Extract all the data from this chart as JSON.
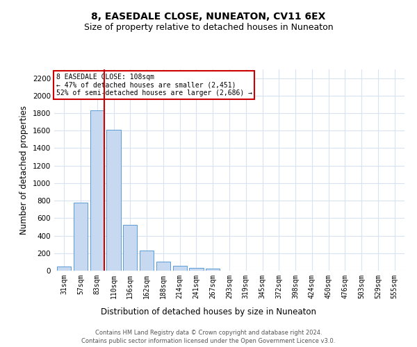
{
  "title": "8, EASEDALE CLOSE, NUNEATON, CV11 6EX",
  "subtitle": "Size of property relative to detached houses in Nuneaton",
  "xlabel": "Distribution of detached houses by size in Nuneaton",
  "ylabel": "Number of detached properties",
  "categories": [
    "31sqm",
    "57sqm",
    "83sqm",
    "110sqm",
    "136sqm",
    "162sqm",
    "188sqm",
    "214sqm",
    "241sqm",
    "267sqm",
    "293sqm",
    "319sqm",
    "345sqm",
    "372sqm",
    "398sqm",
    "424sqm",
    "450sqm",
    "476sqm",
    "503sqm",
    "529sqm",
    "555sqm"
  ],
  "values": [
    45,
    780,
    1830,
    1610,
    520,
    230,
    105,
    55,
    35,
    20,
    0,
    0,
    0,
    0,
    0,
    0,
    0,
    0,
    0,
    0,
    0
  ],
  "bar_color": "#c6d9f0",
  "bar_edge_color": "#5b9bd5",
  "vline_x_index": 2.43,
  "annotation_text": "8 EASEDALE CLOSE: 108sqm\n← 47% of detached houses are smaller (2,451)\n52% of semi-detached houses are larger (2,686) →",
  "annotation_box_color": "#ffffff",
  "annotation_box_edge": "#cc0000",
  "vline_color": "#cc0000",
  "ylim": [
    0,
    2300
  ],
  "yticks": [
    0,
    200,
    400,
    600,
    800,
    1000,
    1200,
    1400,
    1600,
    1800,
    2000,
    2200
  ],
  "footer_line1": "Contains HM Land Registry data © Crown copyright and database right 2024.",
  "footer_line2": "Contains public sector information licensed under the Open Government Licence v3.0.",
  "bg_color": "#ffffff",
  "grid_color": "#d9e2f0",
  "title_fontsize": 10,
  "subtitle_fontsize": 9,
  "tick_fontsize": 7,
  "ylabel_fontsize": 8.5,
  "xlabel_fontsize": 8.5,
  "footer_fontsize": 6
}
